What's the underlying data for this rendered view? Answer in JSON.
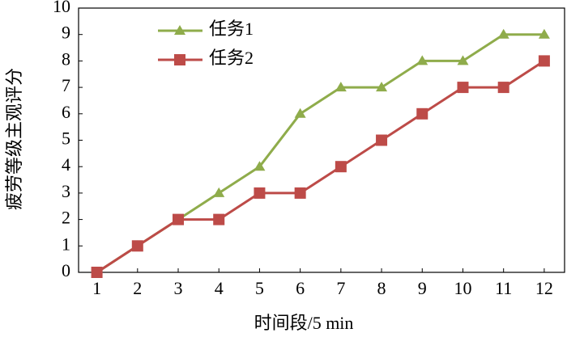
{
  "chart_data": {
    "type": "line",
    "x_label": "时间段/5 min",
    "y_label": "疲劳等级主观评分",
    "x": [
      1,
      2,
      3,
      4,
      5,
      6,
      7,
      8,
      9,
      10,
      11,
      12
    ],
    "series": [
      {
        "name": "任务1",
        "color": "#8fac4b",
        "marker": "triangle",
        "values": [
          0,
          1,
          2,
          3,
          4,
          6,
          7,
          7,
          8,
          8,
          9,
          9
        ]
      },
      {
        "name": "任务2",
        "color": "#bd4b48",
        "marker": "square",
        "values": [
          0,
          1,
          2,
          2,
          3,
          3,
          4,
          5,
          6,
          7,
          7,
          8
        ]
      }
    ],
    "xlim": [
      0.55,
      12.5
    ],
    "xticks": [
      1,
      2,
      3,
      4,
      5,
      6,
      7,
      8,
      9,
      10,
      11,
      12
    ],
    "ylim": [
      0,
      10
    ],
    "yticks": [
      0,
      1,
      2,
      3,
      4,
      5,
      6,
      7,
      8,
      9,
      10
    ],
    "grid": false,
    "legend": "upper left"
  }
}
